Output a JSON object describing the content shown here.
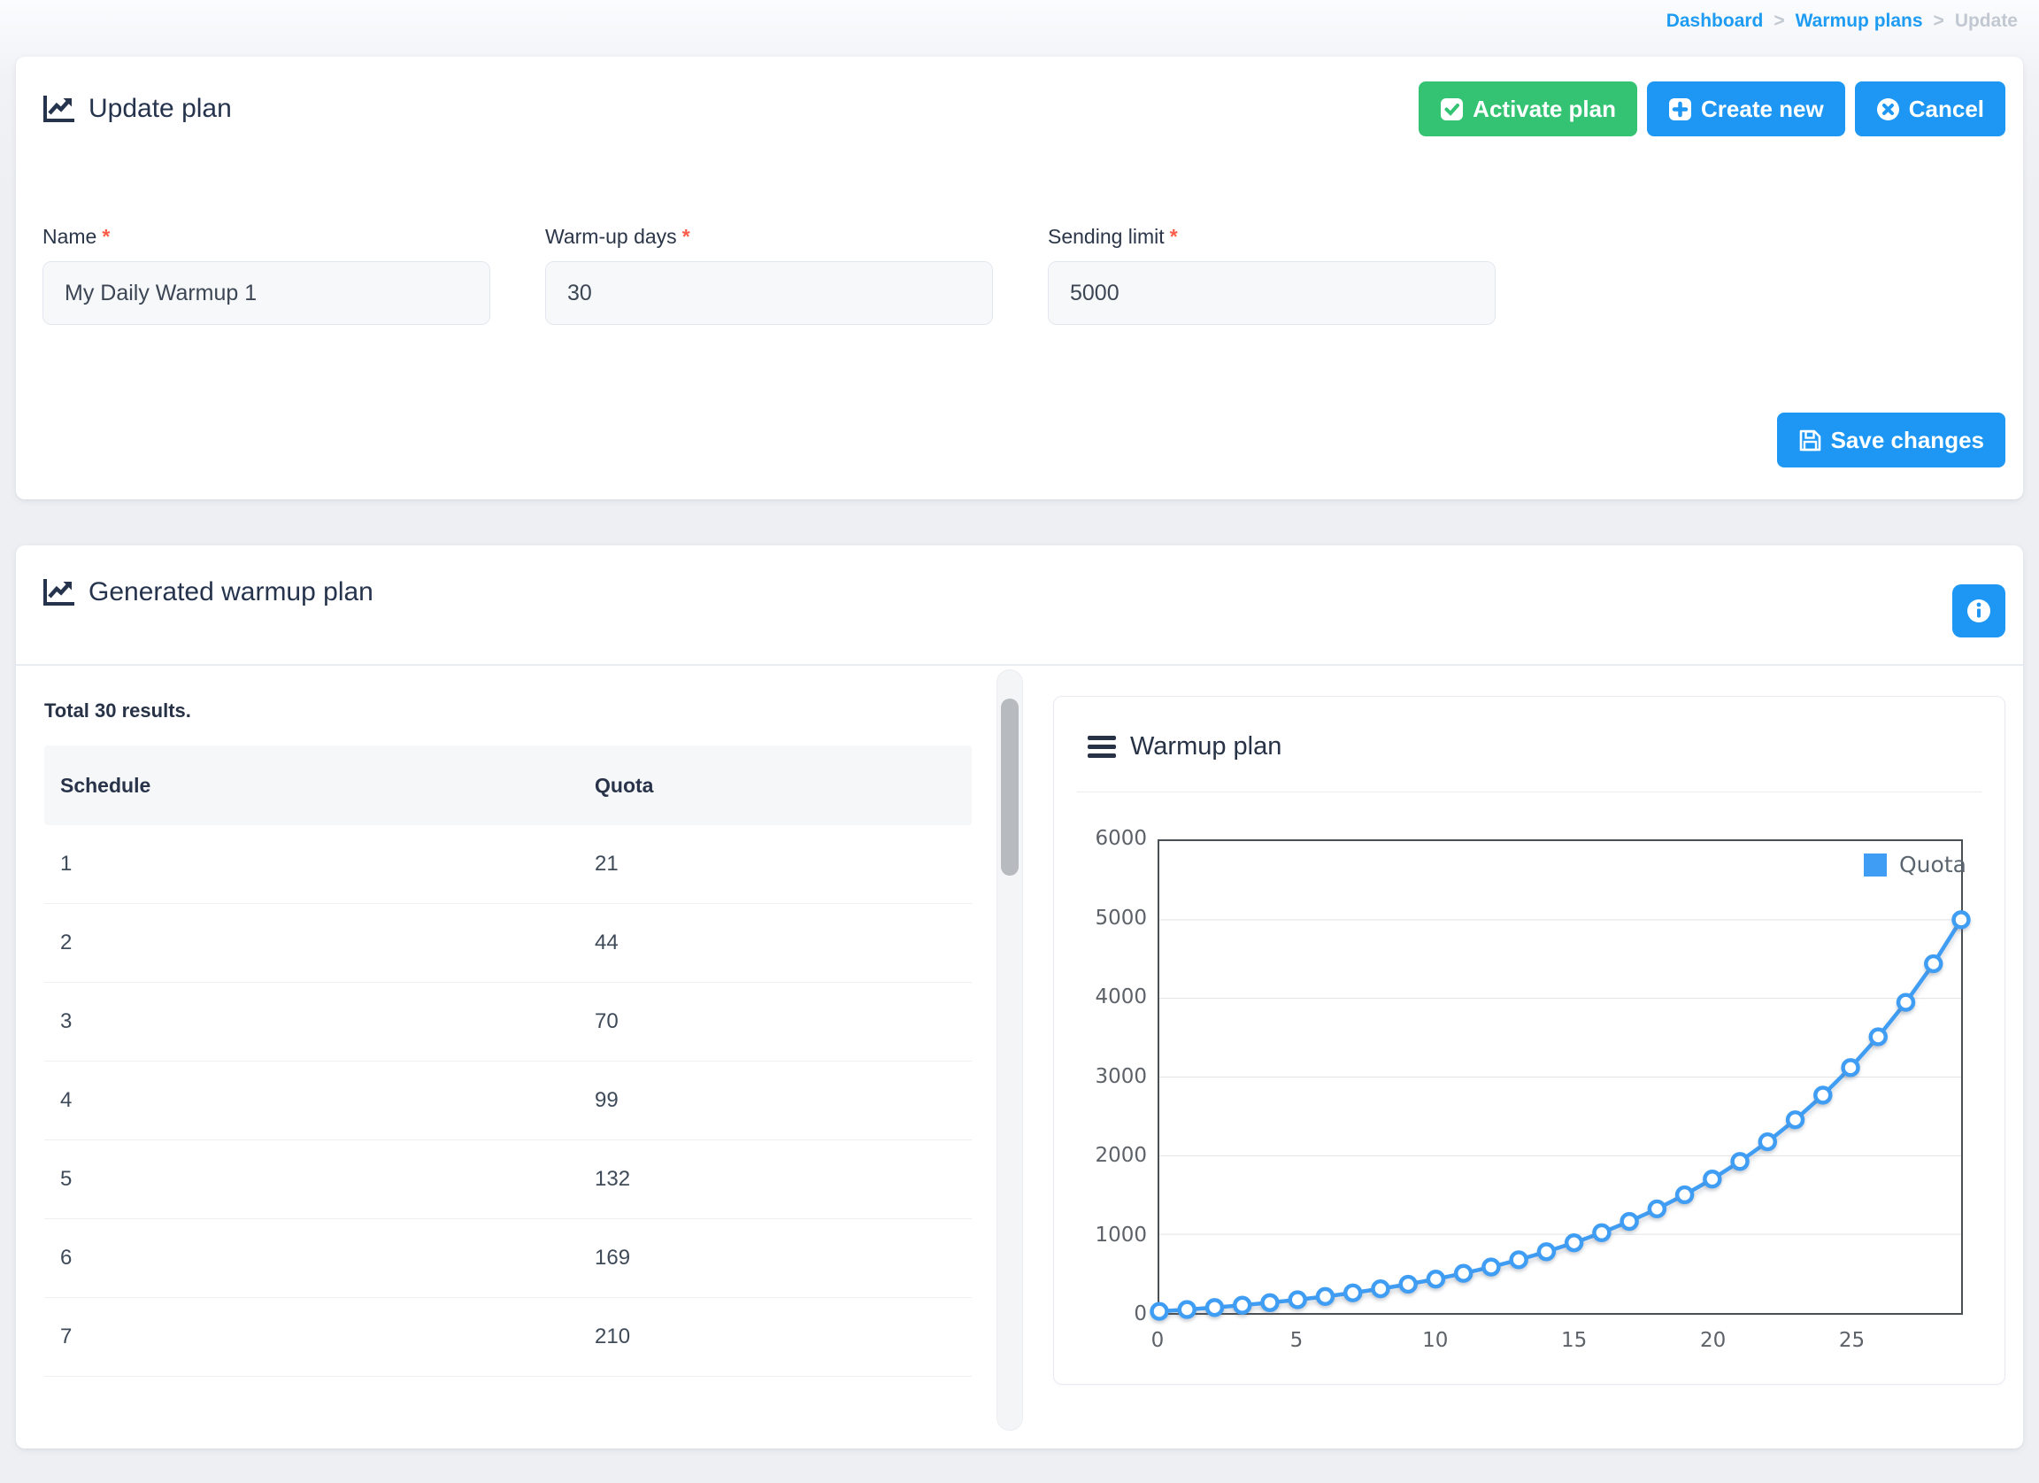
{
  "breadcrumb": {
    "separator": ">",
    "items": [
      {
        "label": "Dashboard",
        "type": "link"
      },
      {
        "label": "Warmup plans",
        "type": "link"
      },
      {
        "label": "Update",
        "type": "current"
      }
    ]
  },
  "update_card": {
    "title": "Update plan",
    "activate_label": "Activate plan",
    "create_label": "Create new",
    "cancel_label": "Cancel",
    "save_label": "Save changes",
    "required_marker": "*",
    "fields": [
      {
        "label": "Name",
        "value": "My Daily Warmup 1"
      },
      {
        "label": "Warm-up days",
        "value": "30"
      },
      {
        "label": "Sending limit",
        "value": "5000"
      }
    ]
  },
  "generated_card": {
    "title": "Generated warmup plan",
    "total_text": "Total 30 results.",
    "table": {
      "columns": [
        "Schedule",
        "Quota"
      ],
      "rows": [
        [
          "1",
          "21"
        ],
        [
          "2",
          "44"
        ],
        [
          "3",
          "70"
        ],
        [
          "4",
          "99"
        ],
        [
          "5",
          "132"
        ],
        [
          "6",
          "169"
        ],
        [
          "7",
          "210"
        ]
      ]
    }
  },
  "chart_data": {
    "type": "line",
    "title": "Warmup plan",
    "xlabel": "",
    "ylabel": "",
    "xlim": [
      0,
      29
    ],
    "ylim": [
      0,
      6000
    ],
    "xticks": [
      0,
      5,
      10,
      15,
      20,
      25
    ],
    "yticks": [
      0,
      1000,
      2000,
      3000,
      4000,
      5000,
      6000
    ],
    "grid": "horizontal",
    "legend_position": "top-right",
    "x": [
      0,
      1,
      2,
      3,
      4,
      5,
      6,
      7,
      8,
      9,
      10,
      11,
      12,
      13,
      14,
      15,
      16,
      17,
      18,
      19,
      20,
      21,
      22,
      23,
      24,
      25,
      26,
      27,
      28,
      29
    ],
    "series": [
      {
        "name": "Quota",
        "color": "#3f9df4",
        "values": [
          21,
          44,
          70,
          99,
          132,
          169,
          210,
          256,
          308,
          366,
          431,
          504,
          585,
          677,
          779,
          893,
          1021,
          1164,
          1324,
          1503,
          1703,
          1927,
          2177,
          2457,
          2770,
          3120,
          3512,
          3950,
          4441,
          5000
        ]
      }
    ]
  },
  "icons": {
    "card_title": "chart-line-icon",
    "activate": "check-square-icon",
    "create": "plus-square-icon",
    "cancel": "times-circle-icon",
    "save": "floppy-disk-icon",
    "info": "info-circle-icon",
    "chart_menu": "hamburger-menu-icon"
  },
  "colors": {
    "primary_blue": "#1d97f3",
    "success_green": "#33c373",
    "link_blue": "#1e9bf2",
    "line_blue": "#3f9df4",
    "danger_red": "#fb5c49",
    "title_navy": "#26334d"
  }
}
